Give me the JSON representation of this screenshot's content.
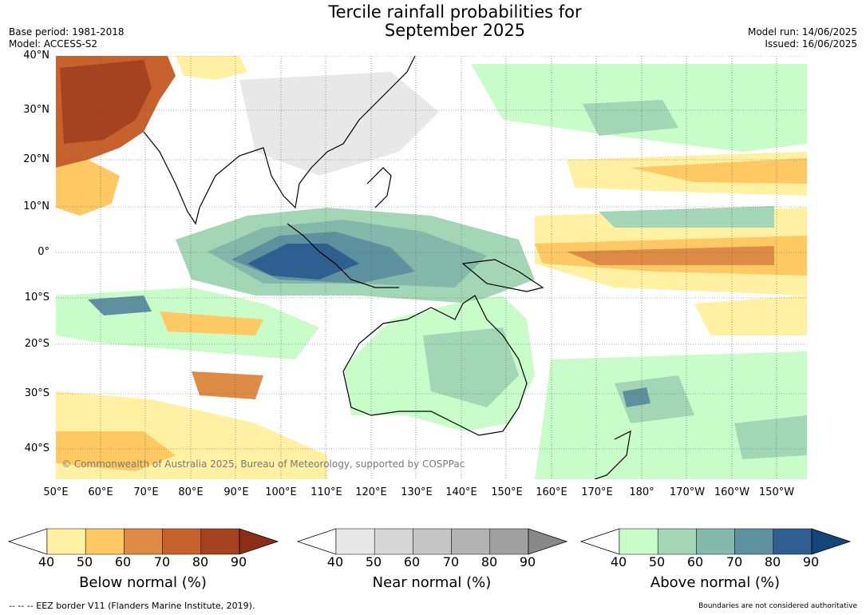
{
  "header": {
    "title": "Tercile rainfall probabilities for\nSeptember 2025",
    "base_period": "Base period: 1981-2018",
    "model": "Model: ACCESS-S2",
    "model_run": "Model run: 14/06/2025",
    "issued": "Issued: 16/06/2025"
  },
  "map": {
    "lat_labels": [
      "40°N",
      "30°N",
      "20°N",
      "10°N",
      "0°",
      "10°S",
      "20°S",
      "30°S",
      "40°S"
    ],
    "lon_labels": [
      "50°E",
      "60°E",
      "70°E",
      "80°E",
      "90°E",
      "100°E",
      "110°E",
      "120°E",
      "130°E",
      "140°E",
      "150°E",
      "160°E",
      "170°E",
      "180°",
      "170°W",
      "160°W",
      "150°W"
    ],
    "copyright": "© Commonwealth of Australia 2025, Bureau of Meteorology, supported by COSPPac"
  },
  "colorbars": [
    {
      "title": "Below normal (%)",
      "ticks": [
        "40",
        "50",
        "60",
        "70",
        "80",
        "90"
      ],
      "colors": [
        "#fff0a2",
        "#fec962",
        "#de8b45",
        "#c7622f",
        "#a5421f"
      ],
      "over_color": "#8b2e15"
    },
    {
      "title": "Near normal (%)",
      "ticks": [
        "40",
        "50",
        "60",
        "70",
        "80",
        "90"
      ],
      "colors": [
        "#e8e8e8",
        "#d6d6d6",
        "#c6c6c6",
        "#b3b3b3",
        "#a0a0a0"
      ],
      "over_color": "#888888"
    },
    {
      "title": "Above normal (%)",
      "ticks": [
        "40",
        "50",
        "60",
        "70",
        "80",
        "90"
      ],
      "colors": [
        "#c8fcc8",
        "#a3d6b5",
        "#84b8ab",
        "#5e91a0",
        "#2f5e91"
      ],
      "over_color": "#12457a"
    }
  ],
  "footer": {
    "eez_note": "--  --  -- EEZ border V11 (Flanders Marine Institute, 2019).",
    "boundaries_note": "Boundaries are not considered authoritative"
  }
}
